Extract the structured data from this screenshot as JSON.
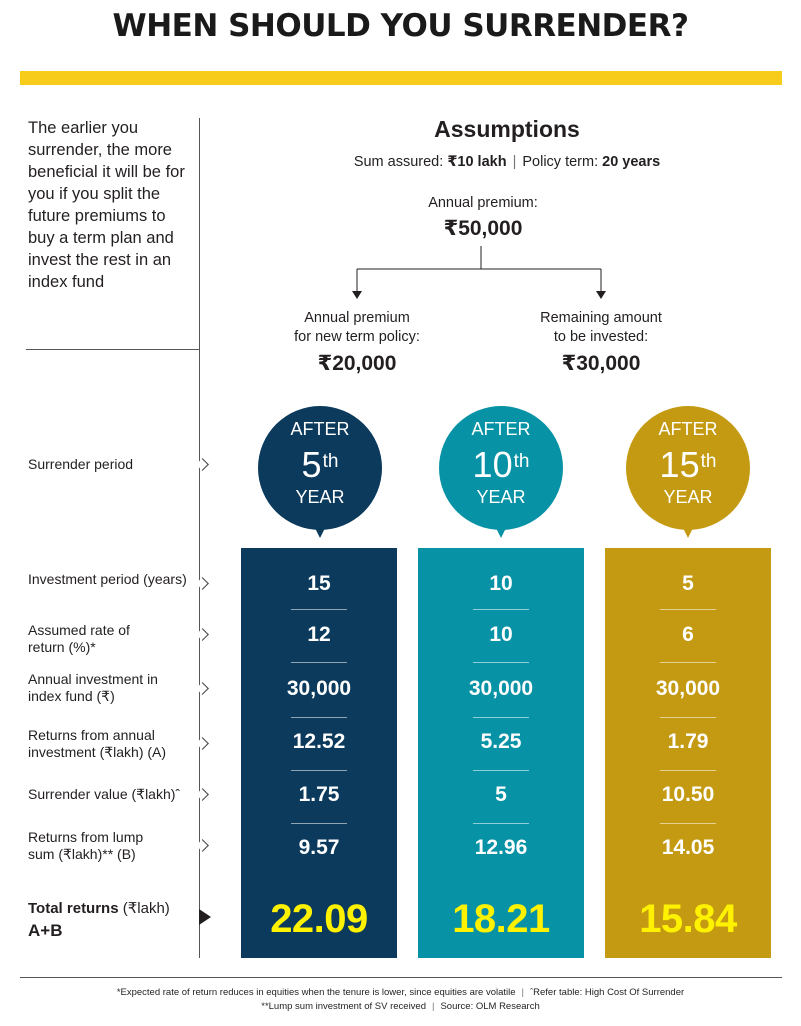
{
  "title": "WHEN SHOULD YOU SURRENDER?",
  "intro": "The earlier you surrender, the more beneficial it will be for you if you split the future premiums to buy a term plan and invest the rest in an index fund",
  "assumptions": {
    "heading": "Assumptions",
    "sum_assured_label": "Sum assured: ",
    "sum_assured_value": "₹10 lakh",
    "policy_term_label": "Policy term: ",
    "policy_term_value": "20 years",
    "annual_premium_label": "Annual premium:",
    "annual_premium_value": "₹50,000",
    "term_policy_label_1": "Annual premium",
    "term_policy_label_2": "for new term policy:",
    "term_policy_value": "₹20,000",
    "invested_label_1": "Remaining amount",
    "invested_label_2": "to be invested:",
    "invested_value": "₹30,000"
  },
  "row_labels": {
    "surrender_period": "Surrender period",
    "investment_period": "Investment period (years)",
    "rate_of_return": "Assumed rate of return (%)*",
    "annual_investment": "Annual investment in index fund (₹)",
    "returns_annual": "Returns from annual investment (₹lakh) (A)",
    "surrender_value": "Surrender value (₹lakh)ˆ",
    "returns_lump": "Returns from lump sum (₹lakh)** (B)",
    "total_bold": "Total returns",
    "total_unit": " (₹lakh)",
    "total_ab": "A+B"
  },
  "columns": [
    {
      "after": "AFTER",
      "num": "5",
      "suffix": "th",
      "year": "YEAR",
      "color": "#0c3a5c",
      "investment_period": "15",
      "rate": "12",
      "annual_investment": "30,000",
      "returns_annual": "12.52",
      "surrender_value": "1.75",
      "returns_lump": "9.57",
      "total": "22.09"
    },
    {
      "after": "AFTER",
      "num": "10",
      "suffix": "th",
      "year": "YEAR",
      "color": "#0892a5",
      "investment_period": "10",
      "rate": "10",
      "annual_investment": "30,000",
      "returns_annual": "5.25",
      "surrender_value": "5",
      "returns_lump": "12.96",
      "total": "18.21"
    },
    {
      "after": "AFTER",
      "num": "15",
      "suffix": "th",
      "year": "YEAR",
      "color": "#c49a12",
      "investment_period": "5",
      "rate": "6",
      "annual_investment": "30,000",
      "returns_annual": "1.79",
      "surrender_value": "10.50",
      "returns_lump": "14.05",
      "total": "15.84"
    }
  ],
  "footnotes": {
    "line1_a": "*Expected rate of return reduces in equities when the tenure is lower, since equities are volatile",
    "line1_b": "ˆRefer table: High Cost Of Surrender",
    "line2_a": "**Lump sum investment of SV received",
    "line2_b": "Source: OLM Research"
  },
  "colors": {
    "accent_yellow": "#f7cc1a",
    "total_value_yellow": "#fff200"
  }
}
